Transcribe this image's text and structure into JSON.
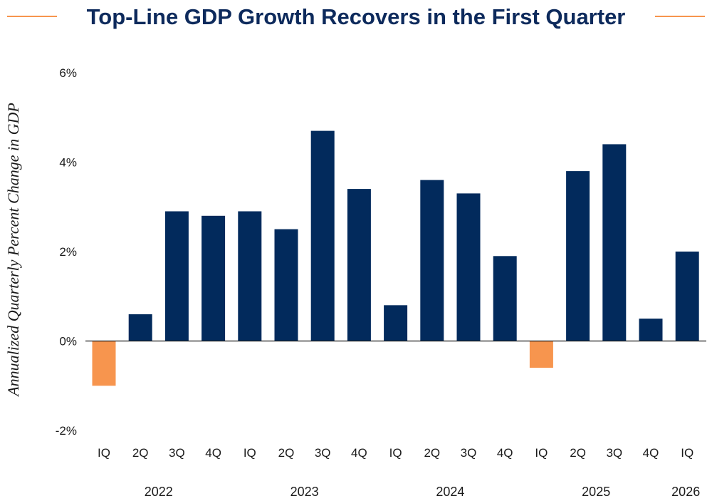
{
  "chart_data": {
    "type": "bar",
    "title": "Top-Line GDP Growth Recovers in the First Quarter",
    "xlabel": "",
    "ylabel": "Annualized Quarterly Percent Change in GDP",
    "ylim": [
      -2,
      6
    ],
    "yticks": [
      {
        "value": -2,
        "label": "-2%"
      },
      {
        "value": 0,
        "label": "0%"
      },
      {
        "value": 2,
        "label": "2%"
      },
      {
        "value": 4,
        "label": "4%"
      },
      {
        "value": 6,
        "label": "6%"
      }
    ],
    "categories": [
      "IQ",
      "2Q",
      "3Q",
      "4Q",
      "IQ",
      "2Q",
      "3Q",
      "4Q",
      "IQ",
      "2Q",
      "3Q",
      "4Q",
      "IQ",
      "2Q",
      "3Q",
      "4Q",
      "IQ"
    ],
    "values": [
      -1.0,
      0.6,
      2.9,
      2.8,
      2.9,
      2.5,
      4.7,
      3.4,
      0.8,
      3.6,
      3.3,
      1.9,
      -0.6,
      3.8,
      4.4,
      0.5,
      2.0
    ],
    "years": [
      {
        "label": "2022",
        "first": 0,
        "last": 3
      },
      {
        "label": "2023",
        "first": 4,
        "last": 7
      },
      {
        "label": "2024",
        "first": 8,
        "last": 11
      },
      {
        "label": "2025",
        "first": 12,
        "last": 15
      },
      {
        "label": "2026",
        "first": 16,
        "last": 16
      }
    ],
    "grid": false,
    "colors": {
      "positive": "#022a5c",
      "negative": "#f7954e",
      "title": "#0d2a5c",
      "title_rule": "#f7954e"
    }
  }
}
